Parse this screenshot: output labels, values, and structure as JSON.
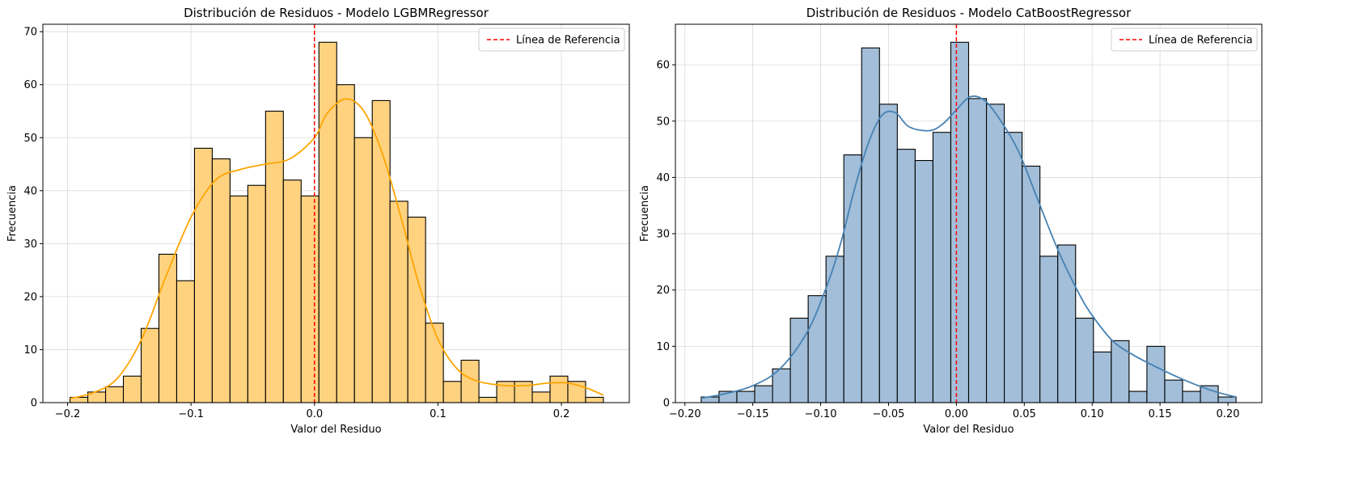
{
  "chart_data": [
    {
      "type": "histogram",
      "title": "Distribución de Residuos - Modelo LGBMRegressor",
      "xlabel": "Valor del Residuo",
      "ylabel": "Frecuencia",
      "xlim": [
        -0.22,
        0.255
      ],
      "ylim": [
        0,
        71.4
      ],
      "xticks": [
        -0.2,
        -0.1,
        0.0,
        0.1,
        0.2
      ],
      "xtick_labels": [
        "−0.2",
        "−0.1",
        "0.0",
        "0.1",
        "0.2"
      ],
      "yticks": [
        0,
        10,
        20,
        30,
        40,
        50,
        60,
        70
      ],
      "ytick_labels": [
        "0",
        "10",
        "20",
        "30",
        "40",
        "50",
        "60",
        "70"
      ],
      "grid": true,
      "bar_color": "#FFD280",
      "kde_color": "#FFA500",
      "bin_range": [
        -0.198,
        0.234
      ],
      "counts": [
        1,
        2,
        3,
        5,
        14,
        28,
        23,
        48,
        46,
        39,
        41,
        55,
        42,
        39,
        68,
        60,
        50,
        57,
        38,
        35,
        15,
        4,
        8,
        1,
        4,
        4,
        2,
        5,
        4,
        1
      ],
      "kde_points": [
        [
          -0.198,
          0.8
        ],
        [
          -0.18,
          1.8
        ],
        [
          -0.16,
          4.5
        ],
        [
          -0.14,
          12.0
        ],
        [
          -0.12,
          24.0
        ],
        [
          -0.1,
          35.0
        ],
        [
          -0.08,
          42.0
        ],
        [
          -0.06,
          44.0
        ],
        [
          -0.04,
          45.0
        ],
        [
          -0.02,
          46.0
        ],
        [
          0.0,
          50.0
        ],
        [
          0.01,
          54.5
        ],
        [
          0.025,
          57.3
        ],
        [
          0.04,
          55.0
        ],
        [
          0.055,
          47.0
        ],
        [
          0.07,
          35.0
        ],
        [
          0.085,
          22.0
        ],
        [
          0.1,
          12.0
        ],
        [
          0.115,
          6.5
        ],
        [
          0.13,
          4.2
        ],
        [
          0.15,
          3.3
        ],
        [
          0.17,
          3.2
        ],
        [
          0.19,
          3.7
        ],
        [
          0.205,
          3.7
        ],
        [
          0.22,
          2.8
        ],
        [
          0.234,
          1.4
        ]
      ],
      "reference_line": {
        "x": 0.0,
        "color": "#FF0000"
      },
      "legend": {
        "placement": "top-right",
        "label": "Línea de Referencia"
      }
    },
    {
      "type": "histogram",
      "title": "Distribución de Residuos - Modelo CatBoostRegressor",
      "xlabel": "Valor del Residuo",
      "ylabel": "Frecuencia",
      "xlim": [
        -0.207,
        0.225
      ],
      "ylim": [
        0,
        67.2
      ],
      "xticks": [
        -0.2,
        -0.15,
        -0.1,
        -0.05,
        0.0,
        0.05,
        0.1,
        0.15,
        0.2
      ],
      "xtick_labels": [
        "−0.20",
        "−0.15",
        "−0.10",
        "−0.05",
        "0.00",
        "0.05",
        "0.10",
        "0.15",
        "0.20"
      ],
      "yticks": [
        0,
        10,
        20,
        30,
        40,
        50,
        60
      ],
      "ytick_labels": [
        "0",
        "10",
        "20",
        "30",
        "40",
        "50",
        "60"
      ],
      "grid": true,
      "bar_color": "#A2BED9",
      "kde_color": "#4682B4",
      "bin_range": [
        -0.188,
        0.206
      ],
      "counts": [
        1,
        2,
        2,
        3,
        6,
        15,
        19,
        26,
        44,
        63,
        53,
        45,
        43,
        48,
        64,
        54,
        53,
        48,
        42,
        26,
        28,
        15,
        9,
        11,
        2,
        10,
        4,
        2,
        3,
        1
      ],
      "kde_points": [
        [
          -0.188,
          0.8
        ],
        [
          -0.17,
          1.6
        ],
        [
          -0.15,
          3.0
        ],
        [
          -0.13,
          6.0
        ],
        [
          -0.11,
          12.5
        ],
        [
          -0.095,
          21.0
        ],
        [
          -0.085,
          28.5
        ],
        [
          -0.075,
          38.0
        ],
        [
          -0.065,
          46.0
        ],
        [
          -0.055,
          51.0
        ],
        [
          -0.045,
          51.5
        ],
        [
          -0.035,
          49.0
        ],
        [
          -0.02,
          48.3
        ],
        [
          -0.01,
          49.5
        ],
        [
          0.0,
          52.0
        ],
        [
          0.01,
          54.3
        ],
        [
          0.02,
          53.8
        ],
        [
          0.03,
          51.0
        ],
        [
          0.045,
          45.0
        ],
        [
          0.06,
          36.0
        ],
        [
          0.075,
          27.0
        ],
        [
          0.09,
          19.5
        ],
        [
          0.1,
          15.5
        ],
        [
          0.115,
          11.0
        ],
        [
          0.13,
          8.5
        ],
        [
          0.15,
          6.0
        ],
        [
          0.17,
          3.8
        ],
        [
          0.19,
          2.0
        ],
        [
          0.206,
          1.0
        ]
      ],
      "reference_line": {
        "x": 0.0,
        "color": "#FF0000"
      },
      "legend": {
        "placement": "top-right",
        "label": "Línea de Referencia"
      }
    }
  ]
}
